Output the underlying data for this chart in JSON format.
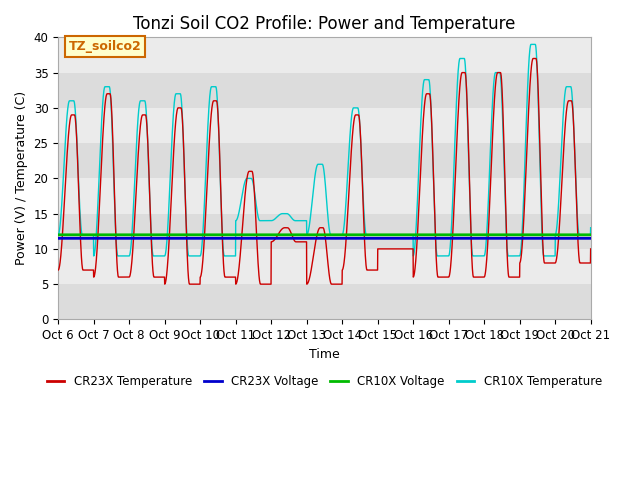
{
  "title": "Tonzi Soil CO2 Profile: Power and Temperature",
  "xlabel": "Time",
  "ylabel": "Power (V) / Temperature (C)",
  "ylim": [
    0,
    40
  ],
  "xlim": [
    0,
    15
  ],
  "tick_labels": [
    "Oct 6",
    "Oct 7",
    "Oct 8",
    "Oct 9",
    "Oct 10",
    "Oct 11",
    "Oct 12",
    "Oct 13",
    "Oct 14",
    "Oct 15",
    "Oct 16",
    "Oct 17",
    "Oct 18",
    "Oct 19",
    "Oct 20",
    "Oct 21"
  ],
  "fig_bg_color": "#ffffff",
  "plot_bg_color": "#e8e8e8",
  "grid_colors": [
    "#d8d8d8",
    "#f0f0f0"
  ],
  "cr23x_temp_color": "#cc0000",
  "cr23x_volt_color": "#0000cc",
  "cr10x_volt_color": "#00bb00",
  "cr10x_temp_color": "#00cccc",
  "annotation_text": "TZ_soilco2",
  "annotation_color": "#cc6600",
  "annotation_bg": "#ffffcc",
  "cr23x_voltage": 11.5,
  "cr10x_voltage": 12.0,
  "title_fontsize": 12,
  "label_fontsize": 9,
  "tick_fontsize": 8.5
}
